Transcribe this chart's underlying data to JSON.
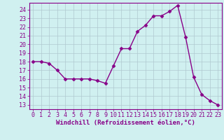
{
  "x": [
    0,
    1,
    2,
    3,
    4,
    5,
    6,
    7,
    8,
    9,
    10,
    11,
    12,
    13,
    14,
    15,
    16,
    17,
    18,
    19,
    20,
    21,
    22,
    23
  ],
  "y": [
    18,
    18,
    17.8,
    17,
    16,
    16,
    16,
    16,
    15.8,
    15.5,
    17.5,
    19.5,
    19.5,
    21.5,
    22.2,
    23.3,
    23.3,
    23.8,
    24.5,
    20.8,
    16.2,
    14.2,
    13.5,
    13.0
  ],
  "line_color": "#880088",
  "bg_color": "#d0f0f0",
  "grid_color": "#b0c8d0",
  "xlabel": "Windchill (Refroidissement éolien,°C)",
  "xlim": [
    -0.5,
    23.5
  ],
  "ylim": [
    12.5,
    24.8
  ],
  "yticks": [
    13,
    14,
    15,
    16,
    17,
    18,
    19,
    20,
    21,
    22,
    23,
    24
  ],
  "xticks": [
    0,
    1,
    2,
    3,
    4,
    5,
    6,
    7,
    8,
    9,
    10,
    11,
    12,
    13,
    14,
    15,
    16,
    17,
    18,
    19,
    20,
    21,
    22,
    23
  ],
  "xlabel_fontsize": 6.5,
  "tick_fontsize": 6.0,
  "line_width": 1.0,
  "marker_size": 2.5
}
